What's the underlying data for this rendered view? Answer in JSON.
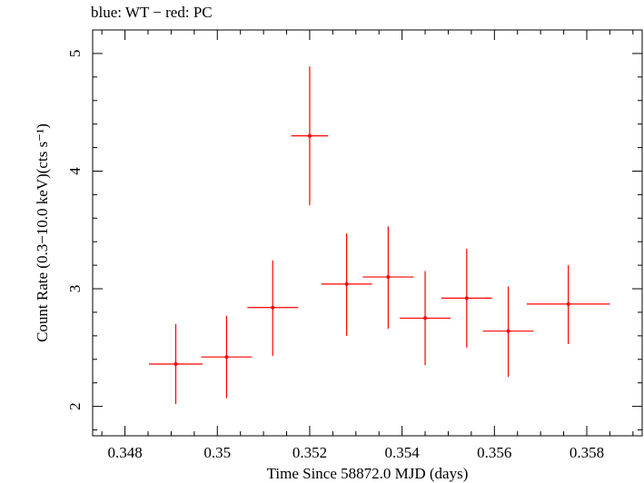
{
  "chart_data": {
    "type": "scatter",
    "title": "blue: WT − red: PC",
    "xlabel": "Time Since 58872.0 MJD (days)",
    "ylabel": "Count Rate (0.3−10.0 keV)(cts s⁻¹)",
    "xlim": [
      0.3473,
      0.3592
    ],
    "ylim": [
      1.75,
      5.2
    ],
    "x_ticks": [
      "0.348",
      "0.35",
      "0.352",
      "0.354",
      "0.356",
      "0.358"
    ],
    "y_ticks": [
      "2",
      "3",
      "4",
      "5"
    ],
    "grid": false,
    "series": [
      {
        "name": "PC",
        "color": "#ff0000",
        "points": [
          {
            "x": 0.3491,
            "y": 2.36,
            "xerr": 0.00058,
            "yerr_low": 0.34,
            "yerr_high": 0.34
          },
          {
            "x": 0.3502,
            "y": 2.42,
            "xerr": 0.00055,
            "yerr_low": 0.35,
            "yerr_high": 0.35
          },
          {
            "x": 0.3512,
            "y": 2.84,
            "xerr": 0.00055,
            "yerr_low": 0.41,
            "yerr_high": 0.4
          },
          {
            "x": 0.352,
            "y": 4.3,
            "xerr": 0.0004,
            "yerr_low": 0.59,
            "yerr_high": 0.59
          },
          {
            "x": 0.3528,
            "y": 3.04,
            "xerr": 0.00055,
            "yerr_low": 0.44,
            "yerr_high": 0.43
          },
          {
            "x": 0.3537,
            "y": 3.1,
            "xerr": 0.00055,
            "yerr_low": 0.44,
            "yerr_high": 0.43
          },
          {
            "x": 0.3545,
            "y": 2.75,
            "xerr": 0.00055,
            "yerr_low": 0.4,
            "yerr_high": 0.4
          },
          {
            "x": 0.3554,
            "y": 2.92,
            "xerr": 0.00055,
            "yerr_low": 0.42,
            "yerr_high": 0.42
          },
          {
            "x": 0.3563,
            "y": 2.64,
            "xerr": 0.00055,
            "yerr_low": 0.39,
            "yerr_high": 0.38
          },
          {
            "x": 0.3576,
            "y": 2.87,
            "xerr": 0.0009,
            "yerr_low": 0.34,
            "yerr_high": 0.33
          }
        ]
      }
    ]
  }
}
